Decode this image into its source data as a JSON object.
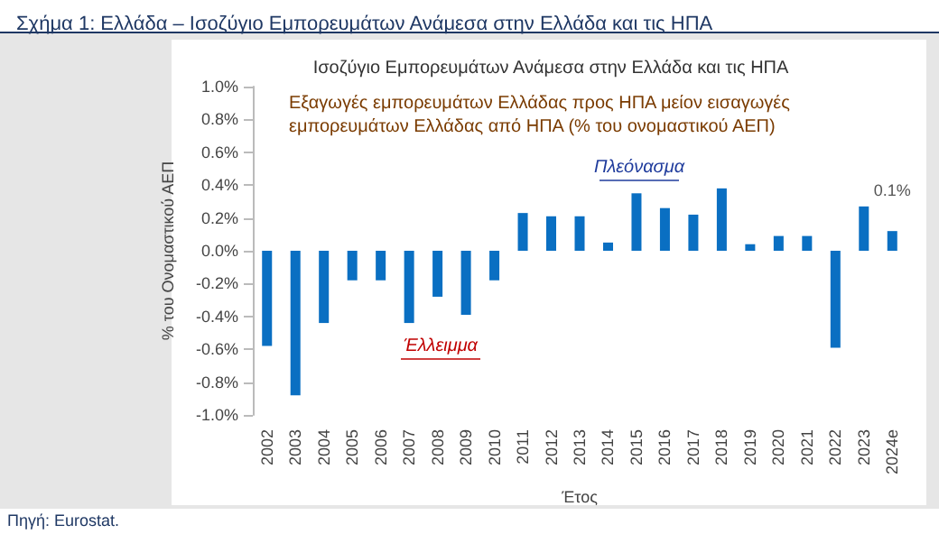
{
  "chart_data": {
    "type": "bar",
    "title": "Σχήμα 1: Ελλάδα – Ισοζύγιο Εμπορευμάτων Ανάμεσα στην Ελλάδα και τις ΗΠΑ",
    "subtitle": "Ισοζύγιο Εμπορευμάτων Ανάμεσα στην Ελλάδα και τις ΗΠΑ",
    "xlabel": "Έτος",
    "ylabel": "% του Ονομαστικού ΑΕΠ",
    "categories": [
      "2002",
      "2003",
      "2004",
      "2005",
      "2006",
      "2007",
      "2008",
      "2009",
      "2010",
      "2011",
      "2012",
      "2013",
      "2014",
      "2015",
      "2016",
      "2017",
      "2018",
      "2019",
      "2020",
      "2021",
      "2022",
      "2023",
      "2024e"
    ],
    "values": [
      -0.58,
      -0.88,
      -0.44,
      -0.18,
      -0.18,
      -0.44,
      -0.28,
      -0.39,
      -0.18,
      0.23,
      0.21,
      0.21,
      0.05,
      0.35,
      0.26,
      0.22,
      0.38,
      0.04,
      0.09,
      0.09,
      -0.59,
      0.27,
      0.12
    ],
    "value_labels": [
      null,
      null,
      null,
      null,
      null,
      null,
      null,
      null,
      null,
      null,
      null,
      null,
      null,
      null,
      null,
      null,
      null,
      null,
      null,
      null,
      null,
      null,
      "0.1%"
    ],
    "color": "#0a6fc2",
    "ylim": [
      -1.0,
      1.0
    ],
    "yticks": [
      {
        "value": -1.0,
        "label": "-1.0%"
      },
      {
        "value": -0.8,
        "label": "-0.8%"
      },
      {
        "value": -0.6,
        "label": "-0.6%"
      },
      {
        "value": -0.4,
        "label": "-0.4%"
      },
      {
        "value": -0.2,
        "label": "-0.2%"
      },
      {
        "value": 0.0,
        "label": "0.0%"
      },
      {
        "value": 0.2,
        "label": "0.2%"
      },
      {
        "value": 0.4,
        "label": "0.4%"
      },
      {
        "value": 0.6,
        "label": "0.6%"
      },
      {
        "value": 0.8,
        "label": "0.8%"
      },
      {
        "value": 1.0,
        "label": "1.0%"
      }
    ],
    "annotations": [
      "Εξαγωγές εμπορευμάτων Ελλάδας προς ΗΠΑ μείον εισαγωγές\nεμπορευμάτων Ελλάδας από ΗΠΑ (% του ονομαστικού ΑΕΠ)",
      "Πλεόνασμα",
      "Έλλειμμα",
      "Πηγή: Eurostat."
    ],
    "grid": false
  }
}
